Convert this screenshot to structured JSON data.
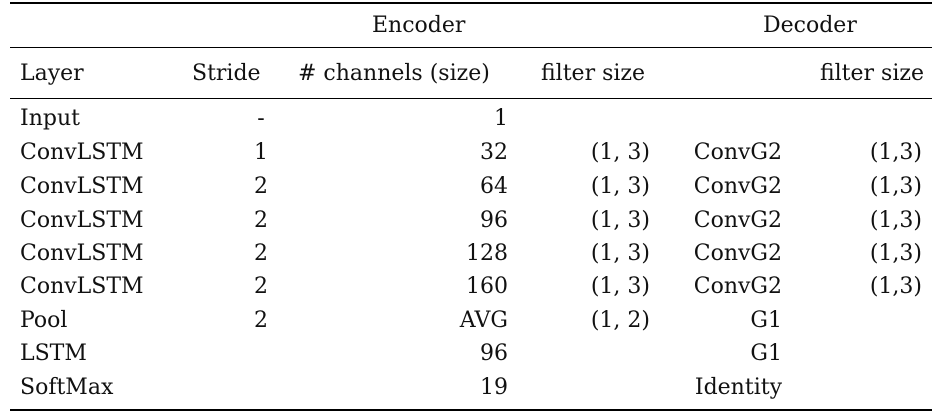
{
  "table": {
    "group_headers": {
      "encoder": "Encoder",
      "decoder": "Decoder"
    },
    "column_headers": {
      "layer": "Layer",
      "stride": "Stride",
      "channels": "# channels (size)",
      "encoder_filter_size": "filter size",
      "decoder_filter_size": "filter size"
    },
    "rows": [
      {
        "layer": "Input",
        "stride": "-",
        "channels": "1",
        "encoder_filter_size": "",
        "decoder_layer": "",
        "decoder_filter_size": ""
      },
      {
        "layer": "ConvLSTM",
        "stride": "1",
        "channels": "32",
        "encoder_filter_size": "(1, 3)",
        "decoder_layer": "ConvG2",
        "decoder_filter_size": "(1,3)"
      },
      {
        "layer": "ConvLSTM",
        "stride": "2",
        "channels": "64",
        "encoder_filter_size": "(1, 3)",
        "decoder_layer": "ConvG2",
        "decoder_filter_size": "(1,3)"
      },
      {
        "layer": "ConvLSTM",
        "stride": "2",
        "channels": "96",
        "encoder_filter_size": "(1, 3)",
        "decoder_layer": "ConvG2",
        "decoder_filter_size": "(1,3)"
      },
      {
        "layer": "ConvLSTM",
        "stride": "2",
        "channels": "128",
        "encoder_filter_size": "(1, 3)",
        "decoder_layer": "ConvG2",
        "decoder_filter_size": "(1,3)"
      },
      {
        "layer": "ConvLSTM",
        "stride": "2",
        "channels": "160",
        "encoder_filter_size": "(1, 3)",
        "decoder_layer": "ConvG2",
        "decoder_filter_size": "(1,3)"
      },
      {
        "layer": "Pool",
        "stride": "2",
        "channels": "AVG",
        "encoder_filter_size": "(1, 2)",
        "decoder_layer": "G1",
        "decoder_filter_size": ""
      },
      {
        "layer": "LSTM",
        "stride": "",
        "channels": "96",
        "encoder_filter_size": "",
        "decoder_layer": "G1",
        "decoder_filter_size": ""
      },
      {
        "layer": "SoftMax",
        "stride": "",
        "channels": "19",
        "encoder_filter_size": "",
        "decoder_layer": "Identity",
        "decoder_filter_size": ""
      }
    ]
  }
}
